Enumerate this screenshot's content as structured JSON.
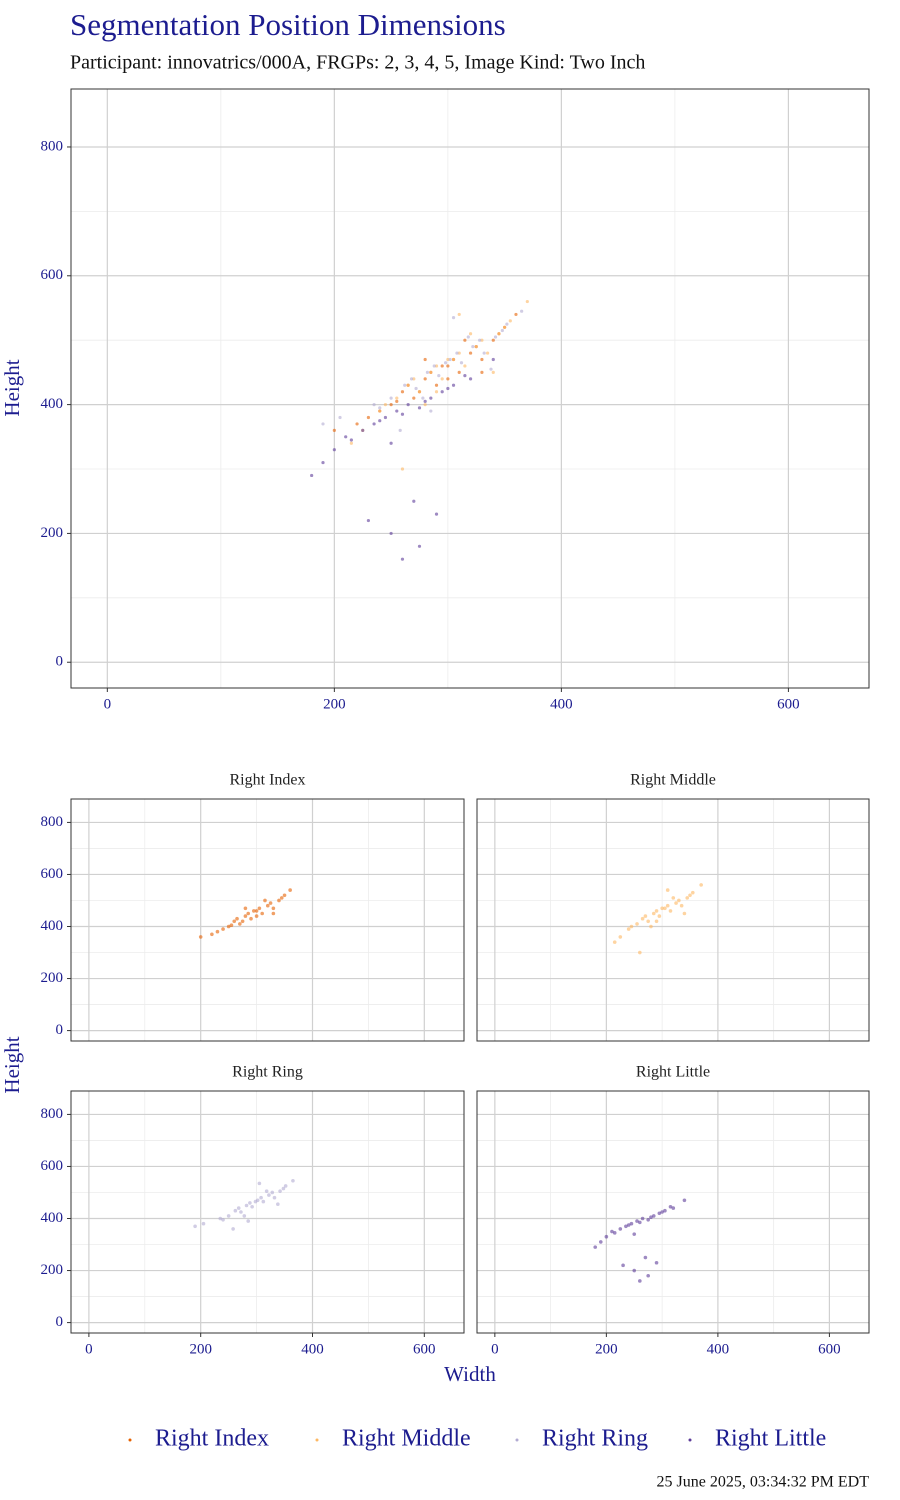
{
  "title": "Segmentation Position Dimensions",
  "subtitle": "Participant: innovatrics/000A, FRGPs: 2, 3, 4, 5, Image Kind: Two Inch",
  "timestamp": "25 June 2025, 03:34:32 PM EDT",
  "chart_data": {
    "type": "scatter",
    "x_label": "Width",
    "y_label": "Height",
    "xlim": [
      -32,
      671
    ],
    "ylim": [
      -40,
      890
    ],
    "xticks": [
      0,
      200,
      400,
      600
    ],
    "yticks": [
      0,
      200,
      400,
      600,
      800
    ],
    "minor_xticks": [
      100,
      300,
      500
    ],
    "minor_yticks": [
      100,
      300,
      500,
      700
    ],
    "grid": true,
    "series": [
      {
        "name": "Right Index",
        "color": "#e66101",
        "x": [
          230,
          250,
          260,
          270,
          280,
          290,
          300,
          310,
          320,
          330,
          340,
          350,
          220,
          240,
          265,
          285,
          305,
          325,
          345,
          200,
          360,
          275,
          295,
          315,
          255,
          300,
          280,
          330
        ],
        "y": [
          380,
          400,
          420,
          410,
          440,
          430,
          460,
          450,
          480,
          470,
          500,
          520,
          370,
          390,
          430,
          450,
          470,
          490,
          510,
          360,
          540,
          420,
          460,
          500,
          405,
          440,
          470,
          450
        ]
      },
      {
        "name": "Right Middle",
        "color": "#fdb863",
        "x": [
          240,
          255,
          265,
          275,
          285,
          295,
          305,
          315,
          325,
          335,
          345,
          355,
          225,
          245,
          270,
          290,
          310,
          330,
          350,
          215,
          370,
          280,
          300,
          320,
          260,
          340,
          290,
          310
        ],
        "y": [
          390,
          410,
          430,
          420,
          450,
          440,
          470,
          460,
          490,
          480,
          510,
          530,
          360,
          400,
          440,
          460,
          480,
          500,
          520,
          340,
          560,
          400,
          470,
          510,
          300,
          450,
          420,
          540
        ]
      },
      {
        "name": "Right Ring",
        "color": "#b2abd2",
        "x": [
          235,
          250,
          262,
          272,
          282,
          292,
          302,
          312,
          322,
          332,
          342,
          352,
          205,
          240,
          268,
          288,
          308,
          328,
          348,
          190,
          365,
          278,
          298,
          318,
          258,
          338,
          285,
          305
        ],
        "y": [
          400,
          410,
          430,
          425,
          450,
          445,
          470,
          465,
          490,
          480,
          505,
          525,
          380,
          395,
          440,
          460,
          480,
          500,
          515,
          370,
          545,
          410,
          465,
          505,
          360,
          455,
          390,
          535
        ]
      },
      {
        "name": "Right Little",
        "color": "#5e3c99",
        "x": [
          200,
          215,
          225,
          235,
          245,
          255,
          265,
          275,
          285,
          295,
          305,
          315,
          190,
          210,
          240,
          260,
          280,
          300,
          320,
          180,
          340,
          250,
          270,
          290,
          230,
          260,
          275,
          250
        ],
        "y": [
          330,
          345,
          360,
          370,
          380,
          390,
          400,
          395,
          410,
          420,
          430,
          445,
          310,
          350,
          375,
          385,
          405,
          425,
          440,
          290,
          470,
          200,
          250,
          230,
          220,
          160,
          180,
          340
        ]
      }
    ]
  }
}
